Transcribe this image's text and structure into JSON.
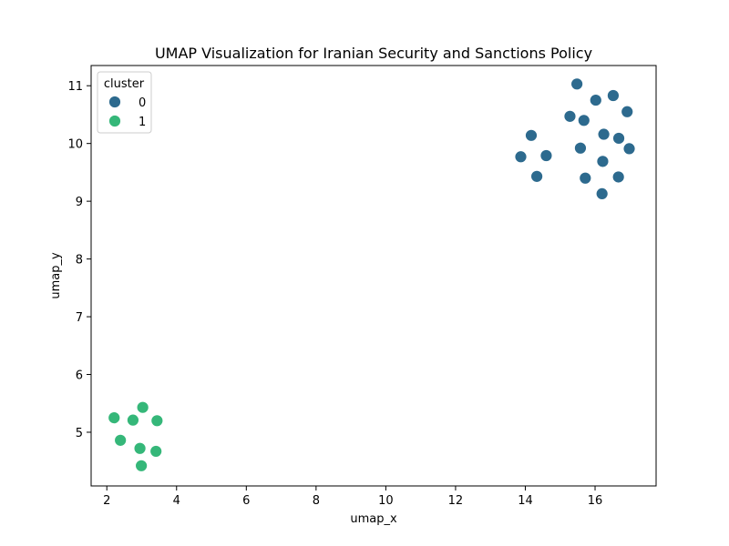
{
  "chart_data": {
    "type": "scatter",
    "title": "UMAP Visualization for Iranian Security and Sanctions Policy",
    "xlabel": "umap_x",
    "ylabel": "umap_y",
    "xlim": [
      1.55,
      17.75
    ],
    "ylim": [
      4.07,
      11.35
    ],
    "xticks": [
      2,
      4,
      6,
      8,
      10,
      12,
      14,
      16
    ],
    "yticks": [
      5,
      6,
      7,
      8,
      9,
      10,
      11
    ],
    "grid": false,
    "legend": {
      "title": "cluster",
      "placement": "top-left"
    },
    "series": [
      {
        "name": "0",
        "color": "#2d6a8e",
        "x": [
          15.48,
          16.02,
          16.52,
          15.28,
          15.68,
          16.92,
          14.17,
          15.58,
          16.25,
          16.68,
          16.98,
          13.87,
          14.6,
          16.22,
          14.33,
          15.72,
          16.67,
          16.2
        ],
        "y": [
          11.03,
          10.75,
          10.83,
          10.47,
          10.4,
          10.55,
          10.14,
          9.92,
          10.16,
          10.09,
          9.91,
          9.77,
          9.79,
          9.69,
          9.43,
          9.4,
          9.42,
          9.13
        ]
      },
      {
        "name": "1",
        "color": "#35b779",
        "x": [
          3.03,
          2.21,
          2.75,
          3.44,
          2.39,
          2.95,
          3.41,
          2.99
        ],
        "y": [
          5.43,
          5.25,
          5.21,
          5.2,
          4.86,
          4.72,
          4.67,
          4.42
        ]
      }
    ]
  }
}
